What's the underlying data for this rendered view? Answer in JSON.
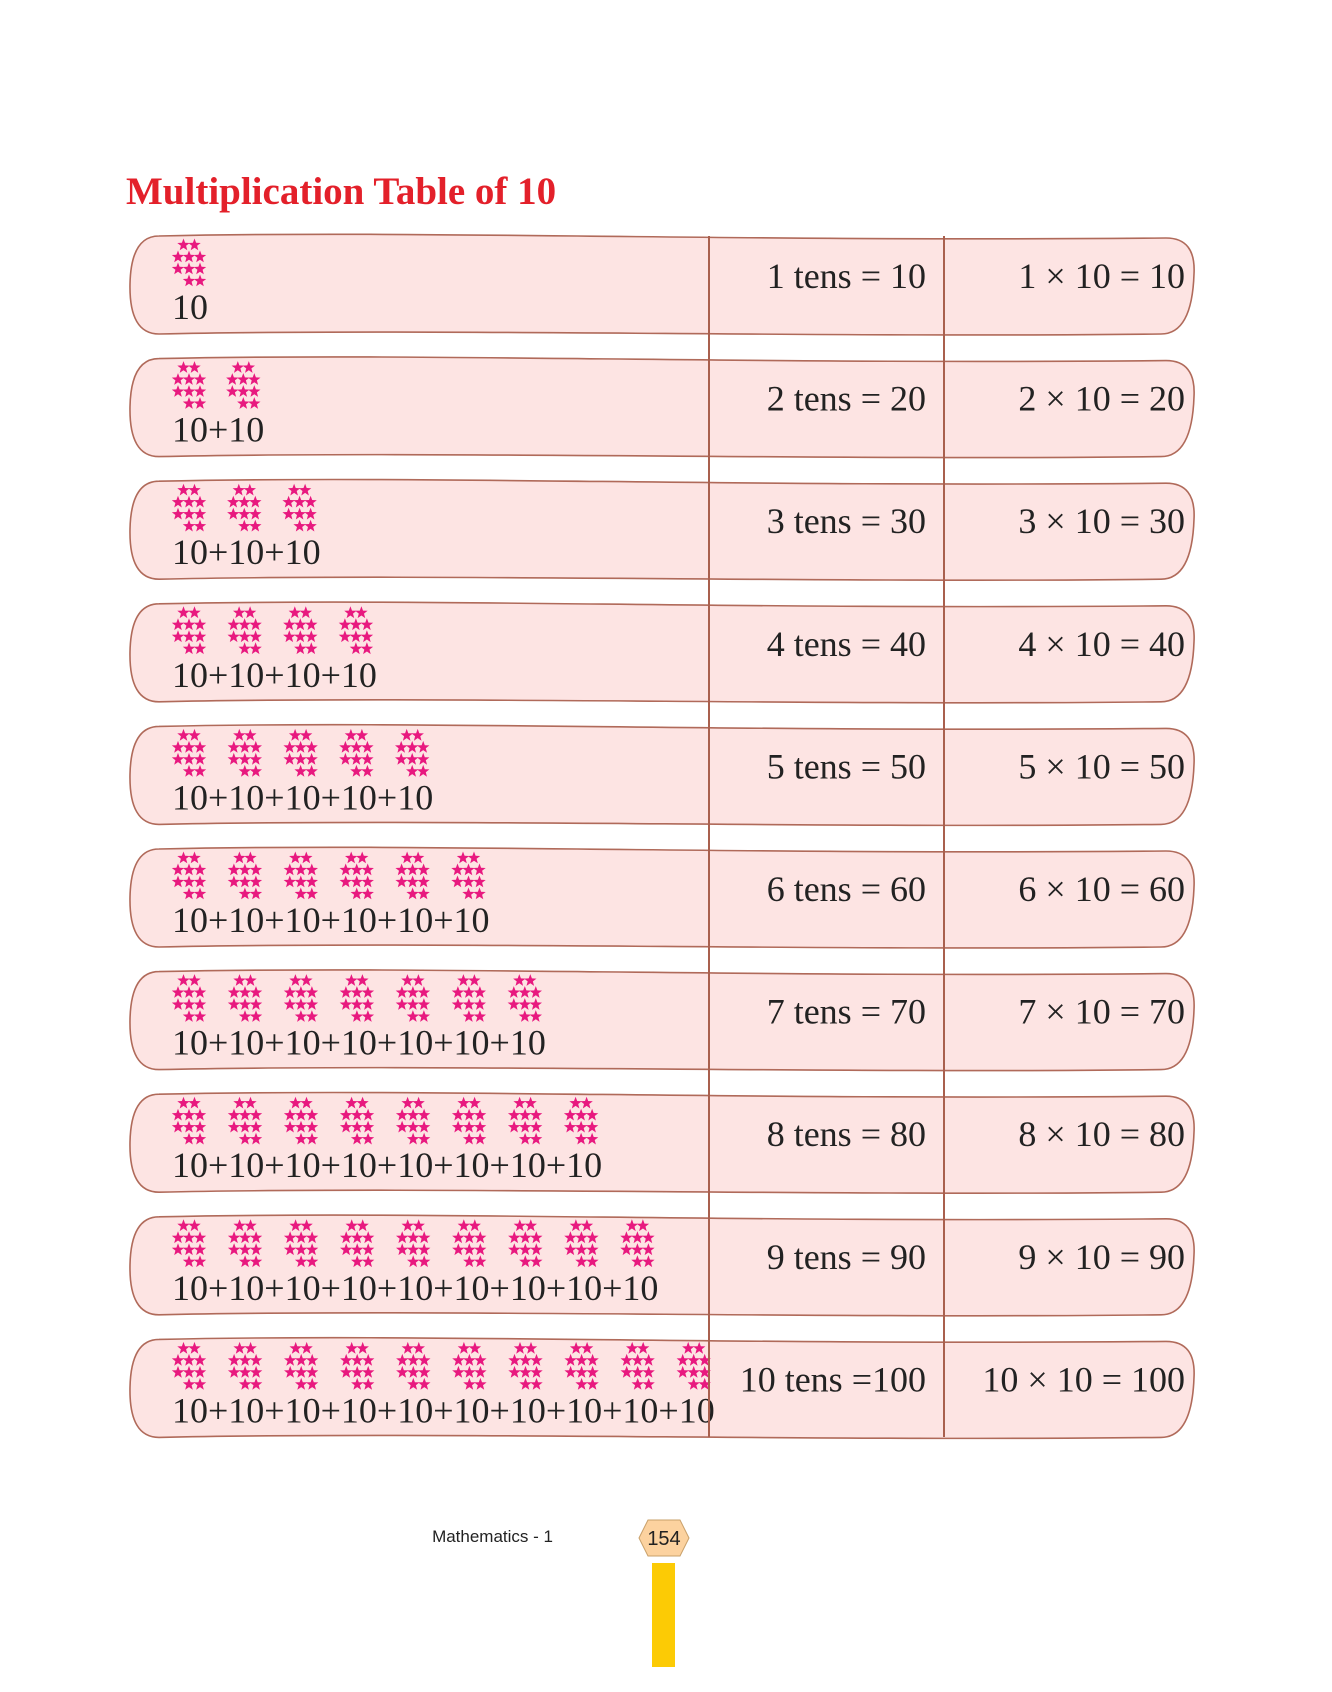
{
  "title": "Multiplication Table of 10",
  "rows": [
    {
      "sum": "10",
      "tens": "1 tens = 10",
      "product": "1 × 10 = 10"
    },
    {
      "sum": "10+10",
      "tens": "2 tens = 20",
      "product": "2 × 10 = 20"
    },
    {
      "sum": "10+10+10",
      "tens": "3 tens = 30",
      "product": "3 × 10 = 30"
    },
    {
      "sum": "10+10+10+10",
      "tens": "4 tens = 40",
      "product": "4 × 10 = 40"
    },
    {
      "sum": "10+10+10+10+10",
      "tens": "5 tens = 50",
      "product": "5 × 10 = 50"
    },
    {
      "sum": "10+10+10+10+10+10",
      "tens": "6 tens = 60",
      "product": "6 × 10 = 60"
    },
    {
      "sum": "10+10+10+10+10+10+10",
      "tens": "7 tens = 70",
      "product": "7 × 10 = 70"
    },
    {
      "sum": "10+10+10+10+10+10+10+10",
      "tens": "8 tens = 80",
      "product": "8 × 10 = 80"
    },
    {
      "sum": "10+10+10+10+10+10+10+10+10",
      "tens": "9 tens = 90",
      "product": "9 × 10 = 90"
    },
    {
      "sum": "10+10+10+10+10+10+10+10+10+10",
      "tens": "10 tens =100",
      "product": "10 × 10 = 100"
    }
  ],
  "footer": {
    "subject": "Mathematics - 1",
    "page": "154"
  }
}
